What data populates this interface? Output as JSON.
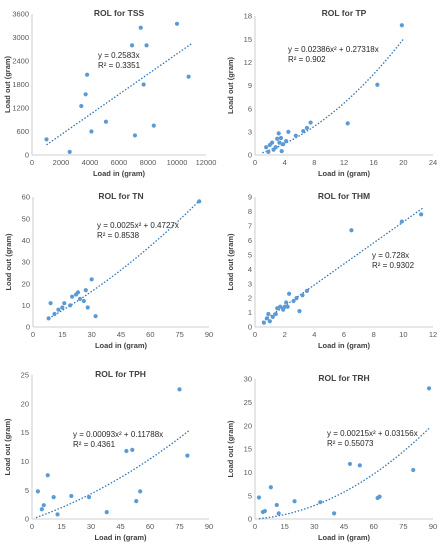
{
  "colors": {
    "marker": "#5b9bd5",
    "trendline": "#2e75b6",
    "axis": "#bfbfbf",
    "text": "#404040"
  },
  "chart_data": [
    {
      "type": "scatter",
      "title": "ROL for TSS",
      "xlabel": "Load in (gram)",
      "ylabel": "Load out (gram)",
      "xlim": [
        0,
        12000
      ],
      "ylim": [
        0,
        3600
      ],
      "xticks": [
        "0",
        "2000",
        "4000",
        "6000",
        "8000",
        "10000",
        "12000"
      ],
      "yticks": [
        "0",
        "600",
        "1200",
        "1800",
        "2400",
        "3000",
        "3600"
      ],
      "trendline": {
        "type": "linear",
        "coef": [
          0.2583,
          0
        ],
        "x_range": [
          1000,
          11000
        ]
      },
      "equation": "y = 0.2583x",
      "r2": "R² = 0.3351",
      "points": [
        [
          1000,
          400
        ],
        [
          2600,
          80
        ],
        [
          3400,
          1250
        ],
        [
          3700,
          1550
        ],
        [
          3800,
          2050
        ],
        [
          4100,
          600
        ],
        [
          5100,
          850
        ],
        [
          6900,
          2800
        ],
        [
          7100,
          500
        ],
        [
          7500,
          3250
        ],
        [
          7700,
          1800
        ],
        [
          7900,
          2800
        ],
        [
          8400,
          750
        ],
        [
          10000,
          3350
        ],
        [
          10800,
          2000
        ]
      ]
    },
    {
      "type": "scatter",
      "title": "ROL for TP",
      "xlabel": "Load in (gram)",
      "ylabel": "Load out (gram)",
      "xlim": [
        0,
        24
      ],
      "ylim": [
        0,
        18
      ],
      "xticks": [
        "0",
        "4",
        "8",
        "12",
        "16",
        "20",
        "24"
      ],
      "yticks": [
        "0",
        "3",
        "6",
        "9",
        "12",
        "15",
        "18"
      ],
      "trendline": {
        "type": "poly2",
        "coef": [
          0.02386,
          0.27318,
          0
        ],
        "x_range": [
          1,
          20
        ]
      },
      "equation": "y = 0.02386x² + 0.27318x",
      "r2": "R² = 0.902",
      "points": [
        [
          1.5,
          1.0
        ],
        [
          1.8,
          0.4
        ],
        [
          2.0,
          1.3
        ],
        [
          2.3,
          1.6
        ],
        [
          2.5,
          0.7
        ],
        [
          2.8,
          1.0
        ],
        [
          3.0,
          2.1
        ],
        [
          3.2,
          2.8
        ],
        [
          3.3,
          1.6
        ],
        [
          3.5,
          2.2
        ],
        [
          3.6,
          0.5
        ],
        [
          3.8,
          1.4
        ],
        [
          4.2,
          1.8
        ],
        [
          4.5,
          3.0
        ],
        [
          5.5,
          2.5
        ],
        [
          6.5,
          3.1
        ],
        [
          7.0,
          3.5
        ],
        [
          7.5,
          4.2
        ],
        [
          12.5,
          4.1
        ],
        [
          16.5,
          9.1
        ],
        [
          19.8,
          16.8
        ]
      ]
    },
    {
      "type": "scatter",
      "title": "ROL for TN",
      "xlabel": "Load in (gram)",
      "ylabel": "Load out (gram)",
      "xlim": [
        0,
        90
      ],
      "ylim": [
        0,
        60
      ],
      "xticks": [
        "0",
        "15",
        "30",
        "45",
        "60",
        "75",
        "90"
      ],
      "yticks": [
        "0",
        "10",
        "20",
        "30",
        "40",
        "50",
        "60"
      ],
      "trendline": {
        "type": "poly2",
        "coef": [
          0.0025,
          0.4727,
          0
        ],
        "x_range": [
          8,
          85
        ]
      },
      "equation": "y = 0.0025x² + 0.4727x",
      "r2": "R² = 0.8538",
      "points": [
        [
          8,
          4
        ],
        [
          9,
          11
        ],
        [
          11,
          6
        ],
        [
          13,
          8
        ],
        [
          15,
          9
        ],
        [
          16,
          11
        ],
        [
          19,
          10
        ],
        [
          20,
          14
        ],
        [
          22,
          15
        ],
        [
          23,
          16
        ],
        [
          24,
          13
        ],
        [
          26,
          12
        ],
        [
          27,
          17
        ],
        [
          28,
          9
        ],
        [
          30,
          22
        ],
        [
          32,
          5
        ],
        [
          85,
          58
        ]
      ]
    },
    {
      "type": "scatter",
      "title": "ROL for THM",
      "xlabel": "Load in (gram)",
      "ylabel": "Load out (gram)",
      "xlim": [
        0,
        12
      ],
      "ylim": [
        0,
        9
      ],
      "xticks": [
        "0",
        "2",
        "4",
        "6",
        "8",
        "10",
        "12"
      ],
      "yticks": [
        "0",
        "1",
        "2",
        "3",
        "4",
        "5",
        "6",
        "7",
        "8",
        "9"
      ],
      "trendline": {
        "type": "linear",
        "coef": [
          0.728,
          0
        ],
        "x_range": [
          0.5,
          11.3
        ]
      },
      "equation": "y = 0.728x",
      "r2": "R² = 0.9302",
      "points": [
        [
          0.6,
          0.3
        ],
        [
          0.8,
          0.6
        ],
        [
          0.9,
          0.9
        ],
        [
          1.0,
          0.4
        ],
        [
          1.2,
          0.7
        ],
        [
          1.4,
          0.9
        ],
        [
          1.5,
          1.3
        ],
        [
          1.7,
          1.4
        ],
        [
          1.9,
          1.2
        ],
        [
          2.0,
          1.4
        ],
        [
          2.1,
          1.7
        ],
        [
          2.2,
          1.4
        ],
        [
          2.3,
          2.3
        ],
        [
          2.6,
          1.8
        ],
        [
          2.8,
          2.0
        ],
        [
          3.0,
          1.1
        ],
        [
          3.2,
          2.2
        ],
        [
          3.5,
          2.5
        ],
        [
          6.5,
          6.7
        ],
        [
          9.9,
          7.3
        ],
        [
          11.2,
          7.8
        ]
      ]
    },
    {
      "type": "scatter",
      "title": "ROL for TPH",
      "xlabel": "Load in (gram)",
      "ylabel": "Load out (gram)",
      "xlim": [
        0,
        90
      ],
      "ylim": [
        0,
        25
      ],
      "xticks": [
        "0",
        "15",
        "30",
        "45",
        "60",
        "75",
        "90"
      ],
      "yticks": [
        "0",
        "5",
        "10",
        "15",
        "20",
        "25"
      ],
      "trendline": {
        "type": "poly2",
        "coef": [
          0.00093,
          0.11788,
          0
        ],
        "x_range": [
          2,
          80
        ]
      },
      "equation": "y = 0.00093x² + 0.11788x",
      "r2": "R² = 0.4361",
      "points": [
        [
          3,
          4.8
        ],
        [
          5,
          1.7
        ],
        [
          6,
          2.4
        ],
        [
          8,
          7.6
        ],
        [
          11,
          3.8
        ],
        [
          13,
          0.8
        ],
        [
          20,
          4.0
        ],
        [
          29,
          3.8
        ],
        [
          38,
          1.2
        ],
        [
          48,
          11.8
        ],
        [
          51,
          12.0
        ],
        [
          53,
          3.1
        ],
        [
          55,
          4.8
        ],
        [
          75,
          22.5
        ],
        [
          79,
          11.0
        ]
      ]
    },
    {
      "type": "scatter",
      "title": "ROL for TRH",
      "xlabel": "Load in (gram)",
      "ylabel": "Load out (gram)",
      "xlim": [
        0,
        90
      ],
      "ylim": [
        0,
        30
      ],
      "xticks": [
        "0",
        "15",
        "30",
        "45",
        "60",
        "75",
        "90"
      ],
      "yticks": [
        "0",
        "5",
        "10",
        "15",
        "20",
        "25",
        "30"
      ],
      "trendline": {
        "type": "poly2",
        "coef": [
          0.00215,
          0.03156,
          0
        ],
        "x_range": [
          2,
          88
        ]
      },
      "equation": "y = 0.00215x² + 0.03156x",
      "r2": "R² = 0.55073",
      "points": [
        [
          2,
          4.6
        ],
        [
          4,
          1.5
        ],
        [
          5,
          1.7
        ],
        [
          8,
          6.8
        ],
        [
          11,
          3.0
        ],
        [
          12,
          1.2
        ],
        [
          20,
          3.8
        ],
        [
          33,
          3.6
        ],
        [
          40,
          1.2
        ],
        [
          48,
          11.8
        ],
        [
          53,
          11.5
        ],
        [
          62,
          4.5
        ],
        [
          63,
          4.8
        ],
        [
          80,
          10.5
        ],
        [
          88,
          28.0
        ]
      ]
    }
  ]
}
